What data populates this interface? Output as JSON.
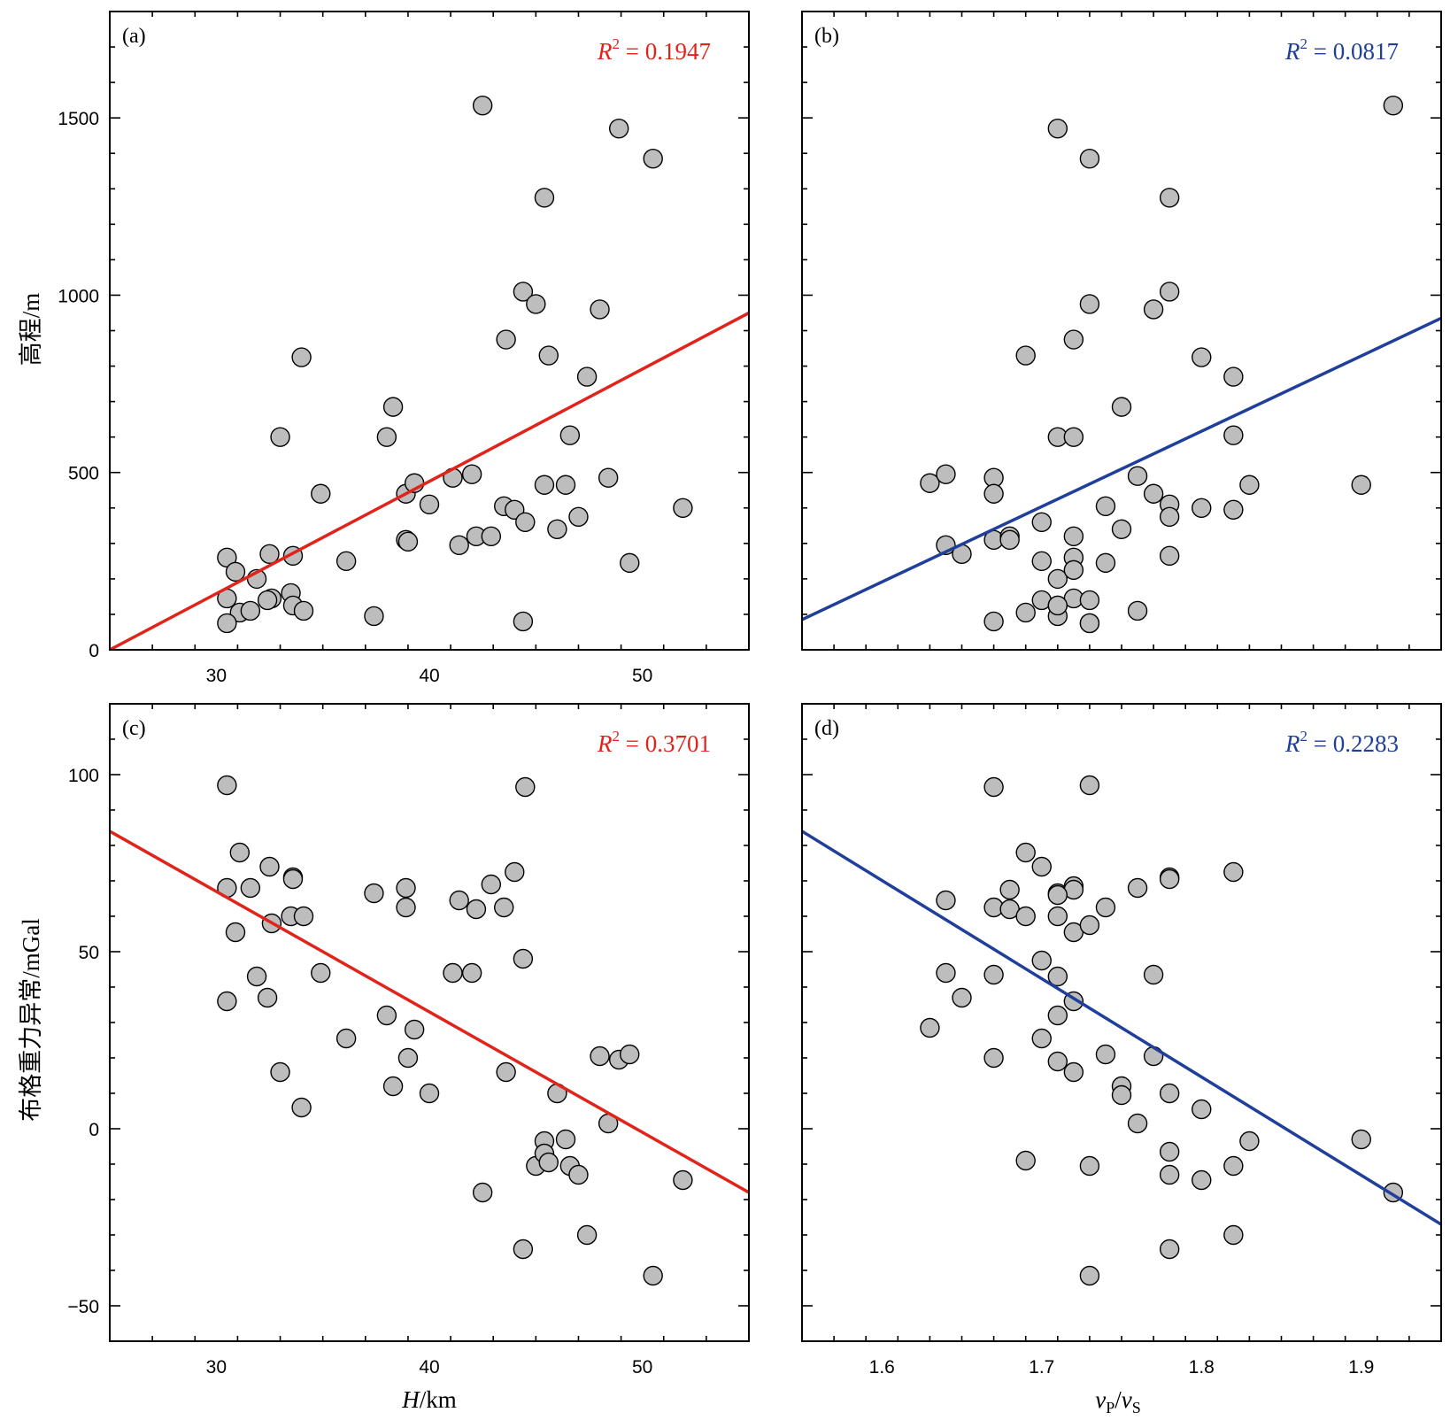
{
  "chart_data": [
    {
      "type": "scatter",
      "panel_label": "(a)",
      "r2_label": "R² = 0.1947",
      "r2_value": "0.1947",
      "color": "#e0241b",
      "xlabel": "H/km",
      "ylabel": "高程/m",
      "xlim": [
        25,
        55
      ],
      "ylim": [
        0,
        1800
      ],
      "x_ticks": [
        "30",
        "40",
        "50"
      ],
      "y_ticks": [
        "0",
        "500",
        "1000",
        "1500"
      ],
      "fit": {
        "x": [
          25,
          55
        ],
        "y": [
          0,
          950
        ]
      },
      "points": {
        "x": [
          30.5,
          30.9,
          31.1,
          31.6,
          31.9,
          32.5,
          32.6,
          32.4,
          33.0,
          33.5,
          33.6,
          33.6,
          34.0,
          34.1,
          34.9,
          36.1,
          37.4,
          38.0,
          38.3,
          38.9,
          38.9,
          39.0,
          39.3,
          40.0,
          41.1,
          41.4,
          42.0,
          42.2,
          42.5,
          42.9,
          43.5,
          43.6,
          44.0,
          44.4,
          44.5,
          44.4,
          45.0,
          45.4,
          45.4,
          45.6,
          46.0,
          46.4,
          46.6,
          47.0,
          47.4,
          48.0,
          48.4,
          48.9,
          49.4,
          50.5,
          51.9,
          30.5,
          30.5
        ],
        "y": [
          260,
          220,
          105,
          110,
          200,
          270,
          145,
          140,
          600,
          160,
          265,
          125,
          825,
          110,
          440,
          250,
          95,
          600,
          685,
          440,
          310,
          305,
          470,
          410,
          485,
          295,
          495,
          320,
          1535,
          320,
          405,
          875,
          395,
          1010,
          360,
          80,
          975,
          465,
          1275,
          830,
          340,
          465,
          605,
          375,
          770,
          960,
          485,
          1470,
          245,
          1385,
          400,
          75,
          145
        ]
      }
    },
    {
      "type": "scatter",
      "panel_label": "(b)",
      "r2_label": "R² = 0.0817",
      "r2_value": "0.0817",
      "color": "#1f3f9a",
      "xlabel": "",
      "ylabel": "",
      "xlim": [
        1.55,
        1.95
      ],
      "ylim": [
        0,
        1800
      ],
      "x_ticks": [],
      "y_ticks": [],
      "fit": {
        "x": [
          1.55,
          1.95
        ],
        "y": [
          85,
          935
        ]
      },
      "points": {
        "x": [
          1.63,
          1.64,
          1.64,
          1.65,
          1.67,
          1.67,
          1.67,
          1.67,
          1.68,
          1.68,
          1.69,
          1.69,
          1.7,
          1.7,
          1.7,
          1.71,
          1.71,
          1.71,
          1.71,
          1.71,
          1.72,
          1.72,
          1.72,
          1.72,
          1.72,
          1.72,
          1.73,
          1.73,
          1.73,
          1.73,
          1.74,
          1.74,
          1.75,
          1.75,
          1.76,
          1.76,
          1.77,
          1.77,
          1.78,
          1.78,
          1.78,
          1.78,
          1.78,
          1.8,
          1.8,
          1.82,
          1.82,
          1.82,
          1.83,
          1.9,
          1.92,
          1.71,
          1.73
        ],
        "y": [
          470,
          495,
          295,
          270,
          485,
          440,
          310,
          80,
          320,
          310,
          830,
          105,
          360,
          250,
          140,
          1470,
          600,
          200,
          125,
          95,
          875,
          600,
          320,
          260,
          225,
          145,
          1385,
          975,
          140,
          75,
          405,
          245,
          685,
          340,
          490,
          110,
          440,
          960,
          1275,
          1010,
          410,
          375,
          265,
          825,
          400,
          770,
          605,
          395,
          465,
          465,
          1535,
          125,
          75
        ]
      }
    },
    {
      "type": "scatter",
      "panel_label": "(c)",
      "r2_label": "R² = 0.3701",
      "r2_value": "0.3701",
      "color": "#e0241b",
      "xlabel": "H/km",
      "ylabel": "布格重力异常/mGal",
      "xlim": [
        25,
        55
      ],
      "ylim": [
        -60,
        120
      ],
      "x_ticks": [
        "30",
        "40",
        "50"
      ],
      "y_ticks": [
        "−50",
        "0",
        "50",
        "100"
      ],
      "fit": {
        "x": [
          25,
          55
        ],
        "y": [
          84,
          -18
        ]
      },
      "points": {
        "x": [
          30.5,
          30.5,
          30.5,
          30.9,
          31.1,
          31.6,
          31.9,
          32.4,
          32.5,
          32.6,
          33.0,
          33.5,
          33.6,
          33.6,
          34.0,
          34.1,
          34.9,
          36.1,
          37.4,
          38.0,
          38.3,
          38.9,
          38.9,
          39.0,
          39.3,
          40.0,
          41.1,
          41.4,
          42.0,
          42.2,
          42.5,
          42.9,
          43.5,
          43.6,
          44.0,
          44.4,
          44.4,
          44.5,
          45.0,
          45.4,
          45.4,
          45.6,
          46.0,
          46.4,
          46.6,
          47.0,
          47.4,
          48.0,
          48.4,
          48.9,
          49.4,
          50.5,
          51.9
        ],
        "y": [
          97,
          68,
          36,
          55.5,
          78,
          68,
          43,
          37,
          74,
          58,
          16,
          60,
          71,
          70.5,
          6,
          60,
          44,
          25.5,
          66.5,
          32,
          12,
          62.5,
          68,
          20,
          28,
          10,
          44,
          64.5,
          44,
          62,
          -18,
          69,
          62.5,
          16,
          72.5,
          48,
          -34,
          96.5,
          -10.5,
          -3.5,
          -7,
          -9.5,
          10,
          -3,
          -10.5,
          -13,
          -30,
          20.5,
          1.5,
          19.5,
          21,
          -41.5,
          -14.5
        ]
      }
    },
    {
      "type": "scatter",
      "panel_label": "(d)",
      "r2_label": "R² = 0.2283",
      "r2_value": "0.2283",
      "color": "#1f3f9a",
      "xlabel": "vP/vS",
      "ylabel": "",
      "xlim": [
        1.55,
        1.95
      ],
      "ylim": [
        -60,
        120
      ],
      "x_ticks": [
        "1.6",
        "1.7",
        "1.8",
        "1.9"
      ],
      "y_ticks": [],
      "fit": {
        "x": [
          1.55,
          1.95
        ],
        "y": [
          84,
          -27
        ]
      },
      "points": {
        "x": [
          1.63,
          1.64,
          1.64,
          1.65,
          1.67,
          1.67,
          1.67,
          1.67,
          1.68,
          1.68,
          1.69,
          1.69,
          1.69,
          1.7,
          1.7,
          1.7,
          1.71,
          1.71,
          1.71,
          1.71,
          1.71,
          1.72,
          1.72,
          1.72,
          1.72,
          1.72,
          1.73,
          1.73,
          1.73,
          1.73,
          1.74,
          1.74,
          1.75,
          1.75,
          1.76,
          1.76,
          1.77,
          1.77,
          1.78,
          1.78,
          1.78,
          1.78,
          1.78,
          1.78,
          1.8,
          1.8,
          1.82,
          1.82,
          1.82,
          1.83,
          1.9,
          1.92,
          1.71
        ],
        "y": [
          28.5,
          64.5,
          44,
          37,
          96.5,
          62.5,
          43.5,
          20,
          67.5,
          62,
          78,
          60,
          -9,
          74,
          47.5,
          25.5,
          66.5,
          60,
          43,
          32,
          19,
          68.5,
          67.5,
          55.5,
          36,
          16,
          97,
          57.5,
          -41.5,
          -10.5,
          62.5,
          21,
          12,
          9.5,
          68,
          1.5,
          43.5,
          20.5,
          71,
          70.5,
          10,
          -6.5,
          -13,
          -34,
          5.5,
          -14.5,
          72.5,
          -10.5,
          -30,
          -3.5,
          -3,
          -18,
          66
        ]
      }
    }
  ]
}
